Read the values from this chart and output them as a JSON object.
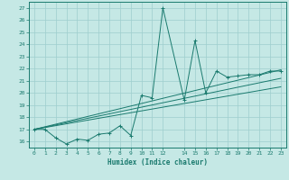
{
  "xlabel": "Humidex (Indice chaleur)",
  "bg_color": "#c5e8e5",
  "grid_color": "#9ecece",
  "line_color": "#1a7a6e",
  "xlim": [
    -0.5,
    23.5
  ],
  "ylim": [
    15.5,
    27.5
  ],
  "yticks": [
    16,
    17,
    18,
    19,
    20,
    21,
    22,
    23,
    24,
    25,
    26,
    27
  ],
  "xticks": [
    0,
    1,
    2,
    3,
    4,
    5,
    6,
    7,
    8,
    9,
    10,
    11,
    12,
    14,
    15,
    16,
    17,
    18,
    19,
    20,
    21,
    22,
    23
  ],
  "series": [
    [
      0,
      17.0
    ],
    [
      1,
      17.0
    ],
    [
      2,
      16.3
    ],
    [
      3,
      15.8
    ],
    [
      4,
      16.2
    ],
    [
      5,
      16.1
    ],
    [
      6,
      16.6
    ],
    [
      7,
      16.7
    ],
    [
      8,
      17.3
    ],
    [
      9,
      16.5
    ],
    [
      10,
      19.8
    ],
    [
      11,
      19.6
    ],
    [
      12,
      27.0
    ],
    [
      14,
      19.4
    ],
    [
      15,
      24.3
    ],
    [
      16,
      20.0
    ],
    [
      17,
      21.8
    ],
    [
      18,
      21.3
    ],
    [
      19,
      21.4
    ],
    [
      20,
      21.5
    ],
    [
      21,
      21.5
    ],
    [
      22,
      21.8
    ],
    [
      23,
      21.8
    ]
  ],
  "regression_lines": [
    {
      "x": [
        0,
        23
      ],
      "y": [
        17.0,
        21.9
      ]
    },
    {
      "x": [
        0,
        23
      ],
      "y": [
        17.0,
        21.2
      ]
    },
    {
      "x": [
        0,
        23
      ],
      "y": [
        17.0,
        20.5
      ]
    }
  ]
}
